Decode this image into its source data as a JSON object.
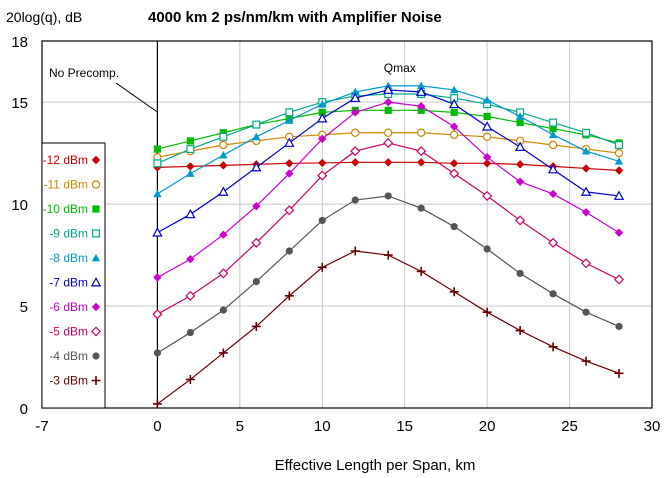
{
  "chart_data": {
    "type": "line",
    "title": "4000 km 2 ps/nm/km with Amplifier Noise",
    "ylabel": "20log(q), dB",
    "xlabel": "Effective Length per Span, km",
    "xlim": [
      -7,
      30
    ],
    "ylim": [
      0,
      18
    ],
    "x_ticks": [
      -7,
      0,
      5,
      10,
      15,
      20,
      25,
      30
    ],
    "y_ticks": [
      0,
      5,
      10,
      15,
      18
    ],
    "grid": true,
    "legend_position": "left",
    "annotations": [
      "No Precomp.",
      "Qmax"
    ],
    "x": [
      0,
      2,
      4,
      6,
      8,
      10,
      12,
      14,
      16,
      18,
      20,
      22,
      24,
      26,
      28
    ],
    "series": [
      {
        "name": "-12 dBm",
        "marker": "diamond-filled",
        "color": "#cc0000",
        "values": [
          11.8,
          11.85,
          11.9,
          11.95,
          12.0,
          12.02,
          12.05,
          12.05,
          12.05,
          12.0,
          12.0,
          11.95,
          11.85,
          11.75,
          11.65
        ]
      },
      {
        "name": "-11 dBm",
        "marker": "circle-open",
        "color": "#cc8800",
        "values": [
          12.3,
          12.6,
          12.9,
          13.1,
          13.3,
          13.4,
          13.5,
          13.5,
          13.5,
          13.4,
          13.3,
          13.1,
          12.9,
          12.7,
          12.5
        ]
      },
      {
        "name": "-10 dBm",
        "marker": "square-filled",
        "color": "#00bb00",
        "values": [
          12.7,
          13.1,
          13.5,
          13.9,
          14.2,
          14.5,
          14.6,
          14.6,
          14.6,
          14.5,
          14.3,
          14.0,
          13.7,
          13.4,
          13.0
        ]
      },
      {
        "name": "-9 dBm",
        "marker": "square-open",
        "color": "#00aa88",
        "values": [
          12.0,
          12.7,
          13.3,
          13.9,
          14.5,
          15.0,
          15.3,
          15.4,
          15.4,
          15.2,
          14.9,
          14.5,
          14.0,
          13.5,
          12.9
        ]
      },
      {
        "name": "-8 dBm",
        "marker": "triangle-filled",
        "color": "#0099cc",
        "values": [
          10.5,
          11.5,
          12.4,
          13.3,
          14.1,
          14.9,
          15.5,
          15.8,
          15.8,
          15.6,
          15.1,
          14.3,
          13.4,
          12.6,
          12.1
        ]
      },
      {
        "name": "-7 dBm",
        "marker": "triangle-open",
        "color": "#0000cc",
        "values": [
          8.6,
          9.5,
          10.6,
          11.8,
          13.0,
          14.2,
          15.2,
          15.6,
          15.5,
          14.9,
          13.8,
          12.8,
          11.7,
          10.6,
          10.4
        ]
      },
      {
        "name": "-6 dBm",
        "marker": "diamond-filled",
        "color": "#cc00cc",
        "values": [
          6.4,
          7.3,
          8.5,
          9.9,
          11.5,
          13.2,
          14.5,
          15.0,
          14.8,
          13.8,
          12.3,
          11.1,
          10.5,
          9.6,
          8.6
        ]
      },
      {
        "name": "-5 dBm",
        "marker": "diamond-open",
        "color": "#cc0066",
        "values": [
          4.6,
          5.5,
          6.6,
          8.1,
          9.7,
          11.4,
          12.6,
          13.0,
          12.6,
          11.5,
          10.4,
          9.2,
          8.1,
          7.1,
          6.3
        ]
      },
      {
        "name": "-4 dBm",
        "marker": "circle-filled",
        "color": "#555555",
        "values": [
          2.7,
          3.7,
          4.8,
          6.2,
          7.7,
          9.2,
          10.2,
          10.4,
          9.8,
          8.9,
          7.8,
          6.6,
          5.6,
          4.7,
          4.0
        ]
      },
      {
        "name": "-3 dBm",
        "marker": "plus",
        "color": "#660000",
        "values": [
          0.2,
          1.4,
          2.7,
          4.0,
          5.5,
          6.9,
          7.7,
          7.5,
          6.7,
          5.7,
          4.7,
          3.8,
          3.0,
          2.3,
          1.7
        ]
      }
    ]
  }
}
